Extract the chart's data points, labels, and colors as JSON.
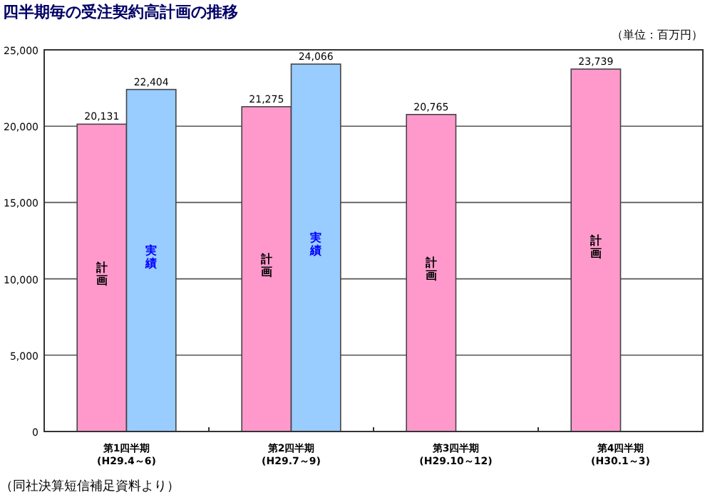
{
  "chart_data": {
    "type": "bar",
    "title": "四半期毎の受注契約高計画の推移",
    "ylabel": "（単位：百万円）",
    "categories": [
      "第1四半期\n(H29.4～6)",
      "第2四半期\n(H29.7～9)",
      "第3四半期\n(H29.10～12)",
      "第4四半期\n(H30.1～3)"
    ],
    "series": [
      {
        "name": "計画",
        "color": "#ff99cc",
        "values": [
          20131,
          21275,
          20765,
          23739
        ],
        "value_labels": [
          "20,131",
          "21,275",
          "20,765",
          "23,739"
        ]
      },
      {
        "name": "実績",
        "color": "#99ccff",
        "values": [
          22404,
          24066,
          null,
          null
        ],
        "value_labels": [
          "22,404",
          "24,066",
          null,
          null
        ]
      }
    ],
    "ylim": [
      0,
      25000
    ],
    "yticks": [
      {
        "value": 0,
        "label": "0"
      },
      {
        "value": 5000,
        "label": "5,000"
      },
      {
        "value": 10000,
        "label": "10,000"
      },
      {
        "value": 15000,
        "label": "15,000"
      },
      {
        "value": 20000,
        "label": "20,000"
      },
      {
        "value": 25000,
        "label": "25,000"
      }
    ],
    "grid": "y",
    "legend": false,
    "annotations": [
      "（同社決算短信補足資料より）"
    ]
  }
}
